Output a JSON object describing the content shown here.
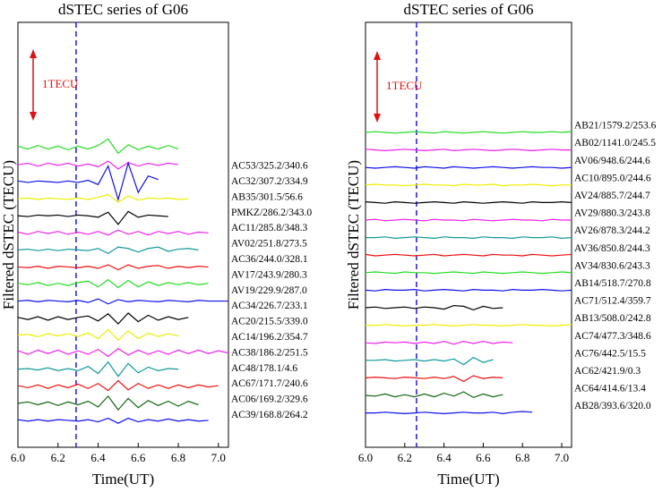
{
  "chart_data": [
    {
      "type": "line",
      "title": "dSTEC series of G06",
      "xlabel": "Time(UT)",
      "ylabel": "Filtered dSTEC (TECU)",
      "xlim": [
        6.0,
        7.05
      ],
      "xticks": [
        {
          "value": 6.0,
          "label": "6.0"
        },
        {
          "value": 6.2,
          "label": "6.2"
        },
        {
          "value": 6.4,
          "label": "6.4"
        },
        {
          "value": 6.6,
          "label": "6.6"
        },
        {
          "value": 6.8,
          "label": "6.8"
        },
        {
          "value": 7.0,
          "label": "7.0"
        }
      ],
      "vline": 6.29,
      "vline_color": "#1a1aee",
      "scale_bar": {
        "value": 1,
        "label": "1TECU"
      },
      "scale_color": "#e01010",
      "x": [
        6.0,
        6.05,
        6.1,
        6.15,
        6.2,
        6.25,
        6.3,
        6.35,
        6.4,
        6.45,
        6.5,
        6.55,
        6.6,
        6.65,
        6.7,
        6.75,
        6.8,
        6.85,
        6.9,
        6.95,
        7.0,
        7.05
      ],
      "series": [
        {
          "name": "AC53/325.2/340.6",
          "color": "#22dd22",
          "values": [
            0.02,
            -0.02,
            0.03,
            -0.02,
            0.02,
            -0.03,
            0.02,
            -0.02,
            0.03,
            0.12,
            -0.08,
            0.04,
            -0.03,
            0.02,
            -0.02,
            0.03,
            -0.02,
            null,
            null,
            null,
            null,
            null
          ]
        },
        {
          "name": "AC32/307.2/334.9",
          "color": "#ee22ee",
          "values": [
            0,
            0.02,
            -0.02,
            0.02,
            -0.01,
            0.02,
            -0.02,
            0.01,
            -0.03,
            0.05,
            -0.06,
            0.03,
            -0.02,
            0.02,
            -0.01,
            0.02,
            0,
            null,
            null,
            null,
            null,
            null
          ]
        },
        {
          "name": "AB35/301.5/56.6",
          "color": "#1010ee",
          "values": [
            0.01,
            -0.01,
            0.01,
            0,
            -0.01,
            0.01,
            -0.01,
            0.02,
            -0.04,
            0.22,
            -0.25,
            0.26,
            -0.15,
            0.08,
            0.03,
            null,
            null,
            null,
            null,
            null,
            null,
            null
          ]
        },
        {
          "name": "PMKZ/286.2/343.0",
          "color": "#eeee00",
          "values": [
            0,
            0.01,
            -0.01,
            0.01,
            0,
            -0.01,
            0.01,
            -0.01,
            0.02,
            0.06,
            -0.05,
            0.04,
            -0.02,
            0.01,
            0,
            0.01,
            -0.01,
            0,
            null,
            null,
            null,
            null
          ]
        },
        {
          "name": "AC11/285.8/348.3",
          "color": "#000000",
          "values": [
            0,
            -0.01,
            0.01,
            0,
            0.01,
            -0.01,
            0.01,
            0,
            -0.02,
            0.05,
            -0.12,
            0.06,
            -0.02,
            0.01,
            0,
            -0.01,
            null,
            null,
            null,
            null,
            null,
            null
          ]
        },
        {
          "name": "AV02/251.8/273.5",
          "color": "#ee22ee",
          "values": [
            0.01,
            -0.02,
            0.02,
            -0.01,
            0.02,
            -0.02,
            0.01,
            -0.02,
            0.02,
            -0.03,
            0.04,
            -0.02,
            0.02,
            -0.03,
            0.02,
            -0.01,
            0.02,
            -0.02,
            0.01,
            0,
            null,
            null
          ]
        },
        {
          "name": "AC36/244.0/328.1",
          "color": "#119999",
          "values": [
            0,
            0.01,
            -0.01,
            0.01,
            -0.01,
            0.01,
            0,
            -0.01,
            0.02,
            -0.05,
            0.04,
            0.02,
            -0.03,
            0.02,
            0.04,
            -0.02,
            0.01,
            0.02,
            0,
            null,
            null,
            null
          ]
        },
        {
          "name": "AV17/243.9/280.3",
          "color": "#ee1111",
          "values": [
            0,
            -0.01,
            0.01,
            -0.02,
            0.01,
            0,
            -0.01,
            0.01,
            -0.02,
            0.03,
            -0.04,
            0.03,
            -0.02,
            0.01,
            0.02,
            -0.02,
            0.01,
            -0.01,
            0.01,
            0,
            null,
            null
          ]
        },
        {
          "name": "AV19/229.9/287.0",
          "color": "#22dd22",
          "values": [
            0.01,
            -0.01,
            0.02,
            -0.02,
            0.01,
            -0.02,
            0.02,
            0.04,
            -0.04,
            0.06,
            -0.05,
            0.05,
            -0.04,
            0.03,
            -0.02,
            0.02,
            -0.01,
            0.02,
            -0.01,
            0.01,
            null,
            null
          ]
        },
        {
          "name": "AC34/226.7/233.1",
          "color": "#1010ee",
          "values": [
            0,
            0.01,
            -0.01,
            0.01,
            0,
            -0.01,
            0.01,
            -0.02,
            0.03,
            -0.04,
            0.02,
            -0.01,
            0.01,
            0,
            -0.01,
            0.01,
            0,
            -0.01,
            0.01,
            0,
            0,
            0
          ]
        },
        {
          "name": "AC20/215.5/339.0",
          "color": "#000000",
          "values": [
            0.01,
            -0.02,
            0.02,
            -0.03,
            0.02,
            -0.02,
            0.01,
            0.03,
            -0.04,
            0.06,
            -0.08,
            0.07,
            -0.05,
            0.04,
            -0.03,
            0.02,
            -0.02,
            0.01,
            null,
            null,
            null,
            null
          ]
        },
        {
          "name": "AC14/196.2/354.7",
          "color": "#eeee00",
          "values": [
            0,
            0.01,
            -0.02,
            0.02,
            -0.01,
            0.02,
            -0.02,
            0.03,
            -0.05,
            0.08,
            -0.07,
            0.06,
            -0.05,
            0.03,
            -0.02,
            0.02,
            -0.01,
            null,
            null,
            null,
            null,
            null
          ]
        },
        {
          "name": "AC38/186.2/251.5",
          "color": "#ee22ee",
          "values": [
            0.02,
            -0.03,
            0.03,
            -0.02,
            0.03,
            -0.03,
            0.02,
            -0.03,
            0.04,
            -0.06,
            0.05,
            -0.04,
            0.03,
            -0.03,
            0.02,
            -0.03,
            0.03,
            -0.02,
            0.03,
            -0.02,
            0.02,
            -0.01
          ]
        },
        {
          "name": "AC48/178.1/4.6",
          "color": "#119999",
          "values": [
            0,
            0.01,
            -0.01,
            0.02,
            -0.02,
            0.01,
            -0.02,
            0.04,
            -0.06,
            0.1,
            -0.1,
            0.08,
            -0.05,
            0.03,
            -0.02,
            0.01,
            0,
            null,
            null,
            null,
            null,
            null
          ]
        },
        {
          "name": "AC67/171.7/240.6",
          "color": "#ee1111",
          "values": [
            0.01,
            -0.02,
            0.02,
            -0.03,
            0.02,
            -0.02,
            0.03,
            -0.03,
            0.04,
            -0.06,
            0.08,
            -0.05,
            0.04,
            -0.03,
            0.02,
            -0.03,
            0.02,
            -0.02,
            0.02,
            -0.01,
            0.01,
            null
          ]
        },
        {
          "name": "AC06/169.2/329.6",
          "color": "#116611",
          "values": [
            0,
            0.02,
            -0.02,
            0.02,
            -0.03,
            0.02,
            -0.02,
            0.03,
            -0.05,
            0.1,
            -0.09,
            0.07,
            -0.06,
            0.04,
            -0.03,
            0.03,
            -0.04,
            0.03,
            -0.02,
            null,
            null,
            null
          ]
        },
        {
          "name": "AC39/168.8/264.2",
          "color": "#1010ee",
          "values": [
            0.01,
            -0.01,
            0.01,
            -0.01,
            0.01,
            0,
            -0.01,
            0.01,
            -0.02,
            0.03,
            -0.04,
            0.03,
            -0.02,
            0.01,
            -0.01,
            0.02,
            -0.01,
            0.01,
            -0.01,
            0,
            null,
            null
          ]
        }
      ]
    },
    {
      "type": "line",
      "title": "dSTEC series of G06",
      "xlabel": "Time(UT)",
      "ylabel": "Filtered dSTEC (TECU)",
      "xlim": [
        6.0,
        7.05
      ],
      "xticks": [
        {
          "value": 6.0,
          "label": "6.0"
        },
        {
          "value": 6.2,
          "label": "6.2"
        },
        {
          "value": 6.4,
          "label": "6.4"
        },
        {
          "value": 6.6,
          "label": "6.6"
        },
        {
          "value": 6.8,
          "label": "6.8"
        },
        {
          "value": 7.0,
          "label": "7.0"
        }
      ],
      "vline": 6.26,
      "vline_color": "#1a1aee",
      "scale_bar": {
        "value": 1,
        "label": "1TECU"
      },
      "scale_color": "#e01010",
      "x": [
        6.0,
        6.05,
        6.1,
        6.15,
        6.2,
        6.25,
        6.3,
        6.35,
        6.4,
        6.45,
        6.5,
        6.55,
        6.6,
        6.65,
        6.7,
        6.75,
        6.8,
        6.85,
        6.9,
        6.95,
        7.0,
        7.05
      ],
      "series": [
        {
          "name": "AB21/1579.2/253.6",
          "color": "#22dd22",
          "values": [
            0,
            0.01,
            0,
            -0.01,
            0,
            0.01,
            0,
            -0.01,
            0.01,
            0,
            -0.01,
            0,
            0.01,
            0,
            -0.01,
            0,
            0.01,
            0,
            0,
            0.01,
            0,
            0.01
          ]
        },
        {
          "name": "AB02/1141.0/245.5",
          "color": "#ee22ee",
          "values": [
            0.01,
            0,
            -0.01,
            0,
            0.01,
            0,
            -0.01,
            0,
            0.01,
            -0.01,
            0,
            0.01,
            0,
            -0.01,
            0,
            0.01,
            0,
            -0.01,
            0,
            0.01,
            0,
            0
          ]
        },
        {
          "name": "AV06/948.6/244.6",
          "color": "#1010ee",
          "values": [
            0,
            -0.01,
            0,
            0.01,
            0,
            -0.01,
            0.01,
            0,
            -0.01,
            0.01,
            0,
            -0.01,
            0,
            0.01,
            0,
            -0.01,
            0,
            0.01,
            0,
            0,
            -0.01,
            0
          ]
        },
        {
          "name": "AC10/895.0/244.6",
          "color": "#eeee00",
          "values": [
            0,
            0.01,
            0,
            0,
            -0.01,
            0,
            0.01,
            0,
            0,
            -0.01,
            0.01,
            0,
            0,
            0.01,
            -0.01,
            0,
            0,
            0.01,
            0,
            -0.01,
            0,
            0
          ]
        },
        {
          "name": "AV24/885.7/244.7",
          "color": "#000000",
          "values": [
            0.01,
            0,
            -0.01,
            0.01,
            0,
            -0.01,
            0,
            0.01,
            0,
            -0.01,
            0.01,
            0,
            -0.01,
            0,
            0.01,
            0,
            -0.01,
            0.01,
            0,
            0,
            0.01,
            0
          ]
        },
        {
          "name": "AV29/880.3/243.8",
          "color": "#ee22ee",
          "values": [
            0,
            0.01,
            -0.01,
            0,
            0.01,
            0,
            -0.01,
            0.01,
            0,
            0,
            -0.01,
            0.01,
            0,
            -0.01,
            0,
            0.01,
            0,
            0,
            -0.01,
            0.01,
            0,
            0
          ]
        },
        {
          "name": "AV26/878.3/244.2",
          "color": "#119999",
          "values": [
            0,
            0,
            0.01,
            -0.01,
            0,
            0.01,
            0,
            -0.01,
            0.01,
            0,
            0,
            -0.01,
            0.01,
            0,
            0,
            -0.01,
            0.01,
            0,
            0,
            0.01,
            -0.01,
            0
          ]
        },
        {
          "name": "AV36/850.8/244.3",
          "color": "#ee1111",
          "values": [
            0.01,
            -0.01,
            0,
            0.01,
            0,
            -0.01,
            0,
            0.01,
            -0.01,
            0,
            0.01,
            0,
            -0.01,
            0.01,
            0,
            0,
            -0.01,
            0.01,
            0,
            -0.01,
            0,
            0.01
          ]
        },
        {
          "name": "AV34/830.6/243.3",
          "color": "#22dd22",
          "values": [
            0,
            0.01,
            0,
            -0.01,
            0.01,
            0,
            0,
            -0.01,
            0,
            0.01,
            0,
            -0.01,
            0.01,
            0,
            -0.01,
            0,
            0.01,
            0,
            -0.01,
            0,
            0.01,
            0
          ]
        },
        {
          "name": "AB14/518.7/270.8",
          "color": "#1010ee",
          "values": [
            0,
            -0.01,
            0.01,
            0,
            0,
            0.01,
            -0.01,
            0,
            0.01,
            0,
            -0.01,
            0.01,
            0,
            0,
            -0.01,
            0.01,
            0,
            0,
            0.01,
            0,
            -0.01,
            0
          ]
        },
        {
          "name": "AC71/512.4/359.7",
          "color": "#000000",
          "values": [
            0,
            0.01,
            -0.01,
            0,
            0.01,
            -0.01,
            0.01,
            0,
            -0.02,
            0.03,
            0.02,
            -0.03,
            0.02,
            -0.01,
            0,
            null,
            null,
            null,
            null,
            null,
            null,
            null
          ]
        },
        {
          "name": "AB13/508.0/242.8",
          "color": "#eeee00",
          "values": [
            0,
            0,
            0.01,
            0,
            -0.01,
            0,
            0,
            0.01,
            0,
            -0.01,
            0,
            0.01,
            0,
            0,
            -0.01,
            0,
            0.01,
            0,
            0,
            -0.01,
            0,
            0.01
          ]
        },
        {
          "name": "AC74/477.3/348.6",
          "color": "#ee22ee",
          "values": [
            0,
            -0.01,
            0.01,
            0,
            0.01,
            -0.01,
            0.01,
            -0.01,
            0.02,
            -0.02,
            0.02,
            -0.01,
            0.02,
            -0.01,
            0.01,
            0,
            null,
            null,
            null,
            null,
            null,
            null
          ]
        },
        {
          "name": "AC76/442.5/15.5",
          "color": "#119999",
          "values": [
            0,
            0,
            0.01,
            -0.01,
            0,
            0.01,
            -0.01,
            0.01,
            -0.01,
            0.02,
            -0.06,
            0.04,
            -0.03,
            0.01,
            null,
            null,
            null,
            null,
            null,
            null,
            null,
            null
          ]
        },
        {
          "name": "AC62/421.9/0.3",
          "color": "#ee1111",
          "values": [
            0,
            0.01,
            0,
            -0.01,
            0.01,
            0,
            -0.01,
            0.01,
            -0.01,
            0.02,
            -0.05,
            0.03,
            -0.01,
            0.01,
            0,
            null,
            null,
            null,
            null,
            null,
            null,
            null
          ]
        },
        {
          "name": "AC64/414.6/13.4",
          "color": "#116611",
          "values": [
            0,
            -0.01,
            0.02,
            -0.02,
            0.01,
            -0.02,
            0.02,
            -0.02,
            0.03,
            -0.01,
            0.05,
            -0.03,
            0.02,
            -0.02,
            0.01,
            null,
            null,
            null,
            null,
            null,
            null,
            null
          ]
        },
        {
          "name": "AB28/393.6/320.0",
          "color": "#1010ee",
          "values": [
            0,
            0,
            0.01,
            0,
            -0.01,
            0,
            0.01,
            0,
            -0.01,
            0,
            0.01,
            0,
            0,
            0.01,
            -0.01,
            0.01,
            0.02,
            0.01,
            null,
            null,
            null,
            null
          ]
        }
      ]
    }
  ]
}
